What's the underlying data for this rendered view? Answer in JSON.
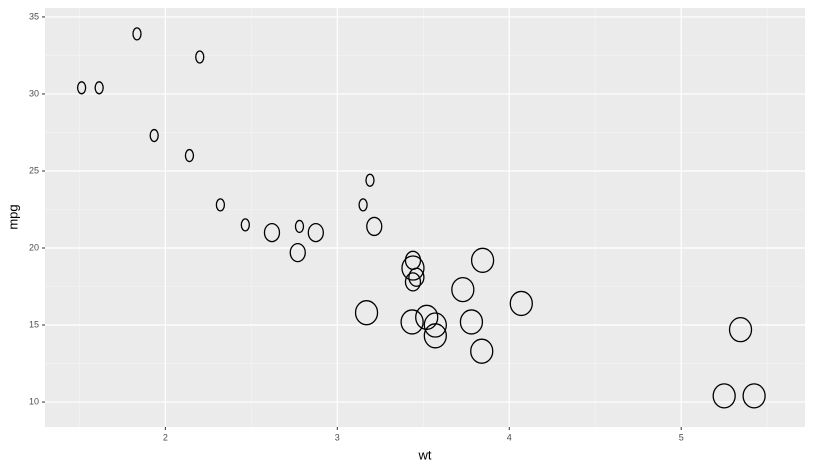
{
  "chart_data": {
    "type": "scatter",
    "x_label": "wt",
    "y_label": "mpg",
    "xlim": [
      1.3,
      5.72
    ],
    "ylim": [
      8.38,
      35.58
    ],
    "xticks": [
      2,
      3,
      4,
      5
    ],
    "yticks": [
      10,
      15,
      20,
      25,
      30,
      35
    ],
    "grid": true,
    "series": [
      {
        "color": "#000000",
        "x": [
          2.62,
          2.875,
          2.32,
          3.215,
          3.44,
          3.46,
          3.57,
          3.19,
          3.15,
          3.44,
          3.44,
          4.07,
          3.73,
          3.78,
          5.25,
          5.424,
          5.345,
          2.2,
          1.615,
          1.835,
          2.465,
          3.52,
          3.435,
          3.84,
          3.845,
          1.935,
          2.14,
          1.513,
          3.17,
          2.77,
          3.57,
          2.78
        ],
        "values": [
          21.0,
          21.0,
          22.8,
          21.4,
          18.7,
          18.1,
          14.3,
          24.4,
          22.8,
          19.2,
          17.8,
          16.4,
          17.3,
          15.2,
          10.4,
          10.4,
          14.7,
          32.4,
          30.4,
          33.9,
          21.5,
          15.5,
          15.2,
          13.3,
          19.2,
          27.3,
          26.0,
          30.4,
          15.8,
          19.7,
          15.0,
          21.4
        ],
        "sizes": [
          6,
          6,
          4,
          6,
          8,
          6,
          8,
          4,
          4,
          6,
          6,
          8,
          8,
          8,
          8,
          8,
          8,
          4,
          4,
          4,
          4,
          8,
          8,
          8,
          8,
          4,
          4,
          4,
          8,
          6,
          8,
          4
        ]
      }
    ]
  }
}
